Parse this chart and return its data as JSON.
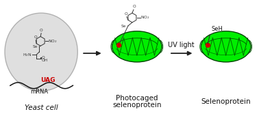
{
  "background_color": "#ffffff",
  "yeast_cell_label": "Yeast cell",
  "photocaged_line1": "Photocaged",
  "photocaged_line2": "selenoprotein",
  "selenoprotein_label": "Selenoprotein",
  "uv_label": "UV light",
  "uag_label": "UAG",
  "mrna_label": "mRNA",
  "seh_label": "SeH",
  "arrow_color": "#222222",
  "protein_green": "#00ee00",
  "protein_dark": "#005500",
  "protein_edge": "#004400",
  "red_dot": "#cc0000",
  "uag_color": "#cc0000",
  "text_color": "#111111",
  "gray_oval_color": "#dcdcdc",
  "gray_oval_edge": "#aaaaaa",
  "chem_line_color": "#333333",
  "label_fontsize": 7.5,
  "small_fontsize": 6.0,
  "uag_fontsize": 6.5,
  "uv_fontsize": 7.0
}
